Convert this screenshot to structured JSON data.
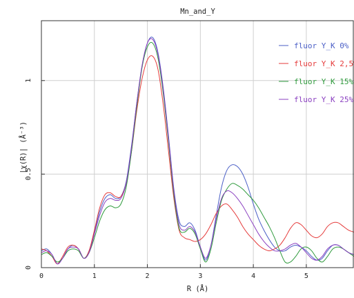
{
  "chart_data": {
    "type": "line",
    "title": "Mn_and_Y",
    "xlabel": "R (Å)",
    "ylabel": "|χ(R)| (Å⁻³)",
    "xlim": [
      0,
      5.9
    ],
    "ylim": [
      0,
      1.32
    ],
    "xticks": [
      0,
      1,
      2,
      3,
      4,
      5
    ],
    "yticks": [
      0,
      0.5,
      1
    ],
    "ytick_labels": [
      "0",
      "0.5",
      "1"
    ],
    "grid": true,
    "legend_position": "top-right",
    "series": [
      {
        "name": "fluor Y_K 0%",
        "color": "#4a5ec6",
        "x": [
          0,
          0.1,
          0.2,
          0.3,
          0.4,
          0.5,
          0.6,
          0.7,
          0.8,
          0.9,
          1.0,
          1.1,
          1.2,
          1.3,
          1.4,
          1.5,
          1.6,
          1.7,
          1.8,
          1.9,
          2.0,
          2.1,
          2.2,
          2.3,
          2.4,
          2.5,
          2.6,
          2.7,
          2.8,
          2.9,
          3.0,
          3.1,
          3.2,
          3.3,
          3.4,
          3.5,
          3.6,
          3.7,
          3.8,
          3.9,
          4.0,
          4.1,
          4.2,
          4.3,
          4.4,
          4.5,
          4.6,
          4.7,
          4.8,
          4.9,
          5.0,
          5.1,
          5.2,
          5.3,
          5.4,
          5.5,
          5.6,
          5.7,
          5.8,
          5.9
        ],
        "values": [
          0.09,
          0.1,
          0.07,
          0.02,
          0.05,
          0.1,
          0.12,
          0.1,
          0.05,
          0.09,
          0.19,
          0.3,
          0.37,
          0.39,
          0.37,
          0.38,
          0.46,
          0.65,
          0.88,
          1.08,
          1.2,
          1.23,
          1.15,
          0.96,
          0.7,
          0.42,
          0.25,
          0.22,
          0.24,
          0.2,
          0.11,
          0.04,
          0.12,
          0.28,
          0.43,
          0.52,
          0.55,
          0.54,
          0.5,
          0.43,
          0.34,
          0.26,
          0.2,
          0.15,
          0.11,
          0.09,
          0.09,
          0.11,
          0.12,
          0.11,
          0.09,
          0.06,
          0.04,
          0.05,
          0.09,
          0.12,
          0.12,
          0.1,
          0.08,
          0.07
        ]
      },
      {
        "name": "fluor Y_K 2,5%",
        "color": "#e53a3a",
        "x": [
          0,
          0.1,
          0.2,
          0.3,
          0.4,
          0.5,
          0.6,
          0.7,
          0.8,
          0.9,
          1.0,
          1.1,
          1.2,
          1.3,
          1.4,
          1.5,
          1.6,
          1.7,
          1.8,
          1.9,
          2.0,
          2.1,
          2.2,
          2.3,
          2.4,
          2.5,
          2.6,
          2.7,
          2.8,
          2.9,
          3.0,
          3.1,
          3.2,
          3.3,
          3.4,
          3.5,
          3.6,
          3.7,
          3.8,
          3.9,
          4.0,
          4.1,
          4.2,
          4.3,
          4.4,
          4.5,
          4.6,
          4.7,
          4.8,
          4.9,
          5.0,
          5.1,
          5.2,
          5.3,
          5.4,
          5.5,
          5.6,
          5.7,
          5.8,
          5.9
        ],
        "values": [
          0.1,
          0.09,
          0.06,
          0.02,
          0.06,
          0.11,
          0.12,
          0.1,
          0.05,
          0.09,
          0.2,
          0.32,
          0.39,
          0.4,
          0.38,
          0.38,
          0.45,
          0.62,
          0.84,
          1.01,
          1.11,
          1.13,
          1.06,
          0.87,
          0.62,
          0.37,
          0.2,
          0.16,
          0.15,
          0.14,
          0.15,
          0.18,
          0.23,
          0.29,
          0.33,
          0.34,
          0.31,
          0.27,
          0.22,
          0.18,
          0.15,
          0.12,
          0.1,
          0.09,
          0.1,
          0.12,
          0.16,
          0.21,
          0.24,
          0.23,
          0.2,
          0.17,
          0.16,
          0.18,
          0.22,
          0.24,
          0.24,
          0.22,
          0.2,
          0.19
        ]
      },
      {
        "name": "fluor Y_K 15%",
        "color": "#2e9a3c",
        "x": [
          0,
          0.1,
          0.2,
          0.3,
          0.4,
          0.5,
          0.6,
          0.7,
          0.8,
          0.9,
          1.0,
          1.1,
          1.2,
          1.3,
          1.4,
          1.5,
          1.6,
          1.7,
          1.8,
          1.9,
          2.0,
          2.1,
          2.2,
          2.3,
          2.4,
          2.5,
          2.6,
          2.7,
          2.8,
          2.9,
          3.0,
          3.1,
          3.2,
          3.3,
          3.4,
          3.5,
          3.6,
          3.7,
          3.8,
          3.9,
          4.0,
          4.1,
          4.2,
          4.3,
          4.4,
          4.5,
          4.6,
          4.7,
          4.8,
          4.9,
          5.0,
          5.1,
          5.2,
          5.3,
          5.4,
          5.5,
          5.6,
          5.7,
          5.8,
          5.9
        ],
        "values": [
          0.07,
          0.08,
          0.06,
          0.03,
          0.05,
          0.09,
          0.1,
          0.09,
          0.05,
          0.08,
          0.16,
          0.25,
          0.31,
          0.33,
          0.32,
          0.34,
          0.43,
          0.62,
          0.86,
          1.07,
          1.18,
          1.2,
          1.12,
          0.93,
          0.67,
          0.39,
          0.21,
          0.19,
          0.21,
          0.18,
          0.1,
          0.03,
          0.1,
          0.24,
          0.36,
          0.42,
          0.45,
          0.44,
          0.42,
          0.39,
          0.36,
          0.32,
          0.27,
          0.22,
          0.16,
          0.09,
          0.03,
          0.03,
          0.06,
          0.1,
          0.11,
          0.09,
          0.05,
          0.03,
          0.06,
          0.1,
          0.11,
          0.1,
          0.08,
          0.06
        ]
      },
      {
        "name": "fluor Y_K 25%",
        "color": "#8a3fc0",
        "x": [
          0,
          0.1,
          0.2,
          0.3,
          0.4,
          0.5,
          0.6,
          0.7,
          0.8,
          0.9,
          1.0,
          1.1,
          1.2,
          1.3,
          1.4,
          1.5,
          1.6,
          1.7,
          1.8,
          1.9,
          2.0,
          2.1,
          2.2,
          2.3,
          2.4,
          2.5,
          2.6,
          2.7,
          2.8,
          2.9,
          3.0,
          3.1,
          3.2,
          3.3,
          3.4,
          3.5,
          3.6,
          3.7,
          3.8,
          3.9,
          4.0,
          4.1,
          4.2,
          4.3,
          4.4,
          4.5,
          4.6,
          4.7,
          4.8,
          4.9,
          5.0,
          5.1,
          5.2,
          5.3,
          5.4,
          5.5,
          5.6,
          5.7,
          5.8,
          5.9
        ],
        "values": [
          0.08,
          0.09,
          0.07,
          0.02,
          0.05,
          0.1,
          0.11,
          0.1,
          0.05,
          0.08,
          0.18,
          0.28,
          0.35,
          0.37,
          0.36,
          0.37,
          0.45,
          0.64,
          0.88,
          1.08,
          1.2,
          1.22,
          1.14,
          0.95,
          0.69,
          0.41,
          0.23,
          0.2,
          0.22,
          0.19,
          0.11,
          0.05,
          0.12,
          0.26,
          0.37,
          0.41,
          0.4,
          0.37,
          0.33,
          0.28,
          0.23,
          0.18,
          0.14,
          0.11,
          0.09,
          0.09,
          0.1,
          0.12,
          0.13,
          0.11,
          0.08,
          0.05,
          0.04,
          0.06,
          0.1,
          0.12,
          0.12,
          0.1,
          0.08,
          0.07
        ]
      }
    ]
  }
}
